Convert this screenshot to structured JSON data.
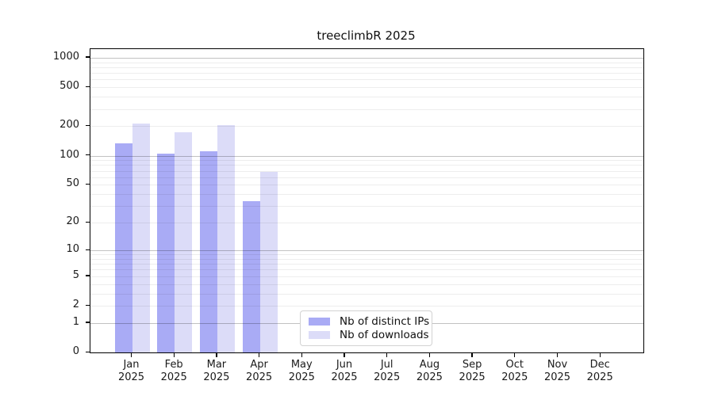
{
  "chart_data": {
    "type": "bar",
    "title": "treeclimbR 2025",
    "x_months": [
      "Jan",
      "Feb",
      "Mar",
      "Apr",
      "May",
      "Jun",
      "Jul",
      "Aug",
      "Sep",
      "Oct",
      "Nov",
      "Dec"
    ],
    "x_year": "2025",
    "series": [
      {
        "name": "Nb of distinct IPs",
        "color": "#a9abf5",
        "values": [
          135,
          105,
          110,
          34,
          0,
          0,
          0,
          0,
          0,
          0,
          0,
          0
        ]
      },
      {
        "name": "Nb of downloads",
        "color": "#dcdcf8",
        "values": [
          213,
          174,
          204,
          68,
          0,
          0,
          0,
          0,
          0,
          0,
          0,
          0
        ]
      }
    ],
    "y_axis": {
      "scale": "log1p",
      "tick_labels": [
        "0",
        "1",
        "2",
        "5",
        "10",
        "20",
        "50",
        "100",
        "200",
        "500",
        "1000"
      ],
      "ticks": [
        0,
        1,
        2,
        5,
        10,
        20,
        50,
        100,
        200,
        500,
        1000
      ],
      "max": 1000
    },
    "grid": "on",
    "legend_position": "lower-center"
  }
}
